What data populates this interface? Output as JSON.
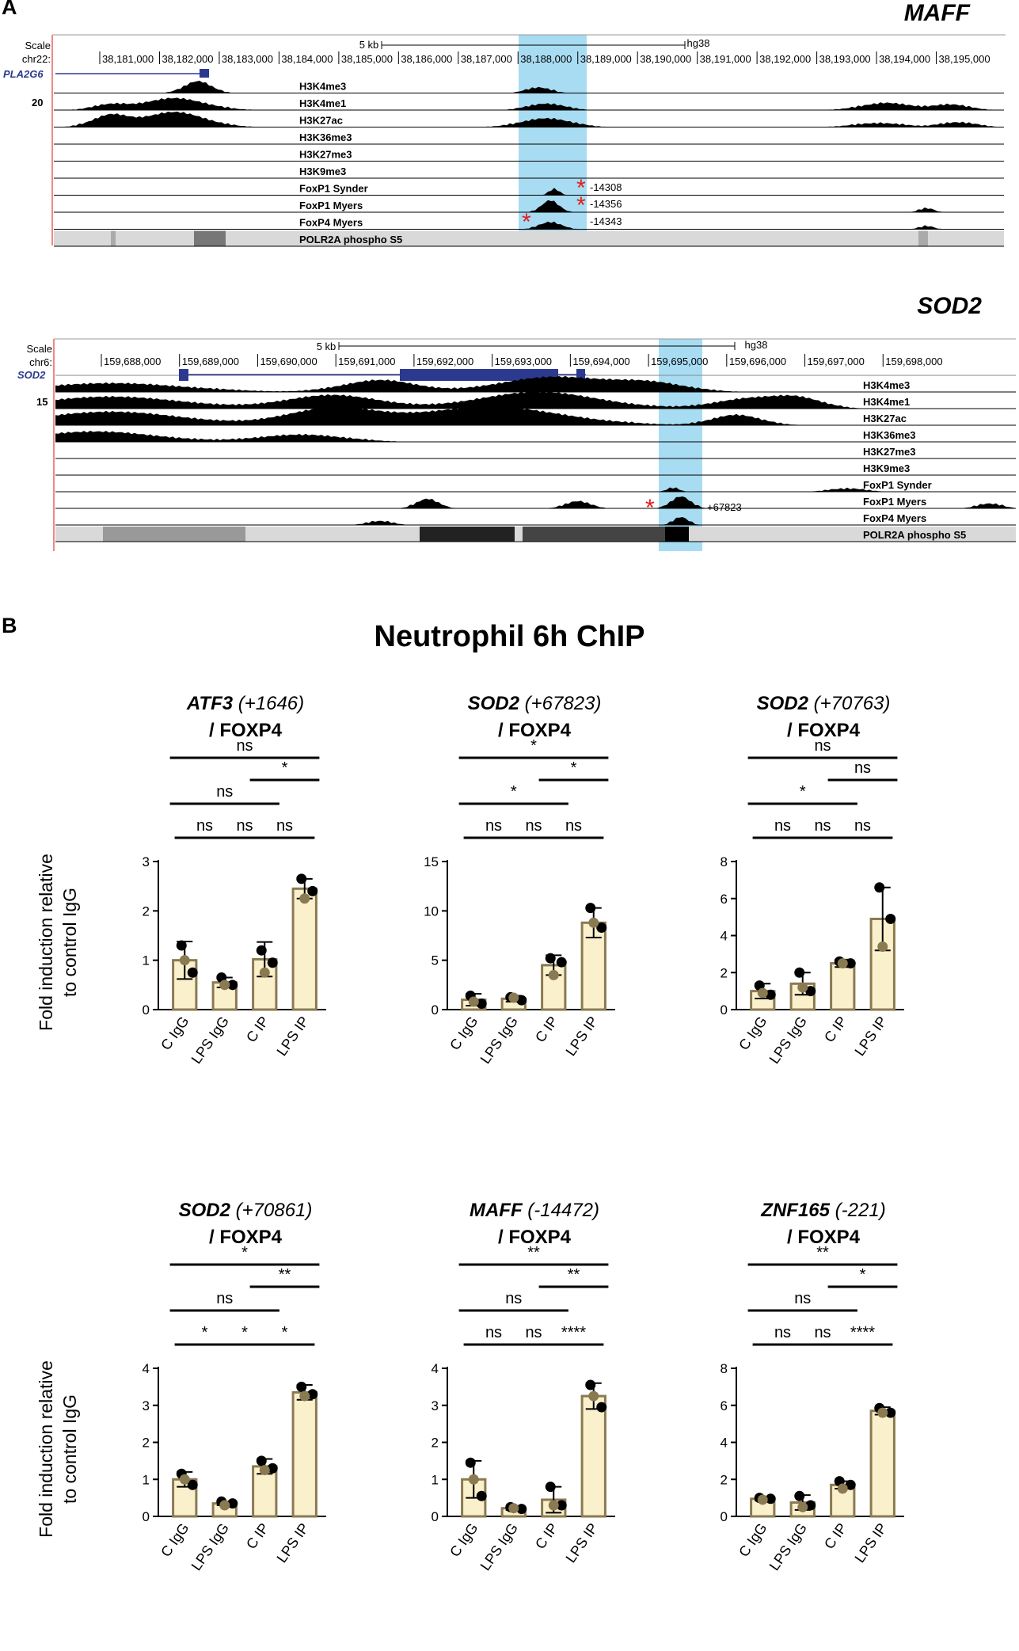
{
  "panel_a": {
    "label": "A",
    "maff": {
      "gene_title": "MAFF",
      "scale_label": "Scale",
      "scale_len": "5 kb",
      "assembly": "hg38",
      "chrom": "chr22:",
      "ticks": [
        "38,181,000",
        "38,182,000",
        "38,183,000",
        "38,184,000",
        "38,185,000",
        "38,186,000",
        "38,187,000",
        "38,188,000",
        "38,189,000",
        "38,190,000",
        "38,191,000",
        "38,192,000",
        "38,193,000",
        "38,194,000",
        "38,195,000"
      ],
      "gene_name": "PLA2G6",
      "ymax": "20",
      "tracks": [
        "H3K4me3",
        "H3K4me1",
        "H3K27ac",
        "H3K36me3",
        "H3K27me3",
        "H3K9me3",
        "FoxP1 Synder",
        "FoxP1 Myers",
        "FoxP4 Myers",
        "POLR2A phospho S5"
      ],
      "peak_labels": [
        "-14308",
        "-14356",
        "-14343"
      ]
    },
    "sod2": {
      "gene_title": "SOD2",
      "scale_label": "Scale",
      "scale_len": "5 kb",
      "assembly": "hg38",
      "chrom": "chr6:",
      "ticks": [
        "159,688,000",
        "159,689,000",
        "159,690,000",
        "159,691,000",
        "159,692,000",
        "159,693,000",
        "159,694,000",
        "159,695,000",
        "159,696,000",
        "159,697,000",
        "159,698,000"
      ],
      "gene_name": "SOD2",
      "ymax": "15",
      "tracks": [
        "H3K4me3",
        "H3K4me1",
        "H3K27ac",
        "H3K36me3",
        "H3K27me3",
        "H3K9me3",
        "FoxP1 Synder",
        "FoxP1 Myers",
        "FoxP4 Myers",
        "POLR2A phospho S5"
      ],
      "peak_labels": [
        "+67823"
      ]
    }
  },
  "panel_b": {
    "label": "B",
    "title": "Neutrophil 6h ChIP",
    "ylabel_line1": "Fold induction relative",
    "ylabel_line2": "to control IgG"
  },
  "colors": {
    "bar_fill": "#fbf0cc",
    "bar_edge": "#8a7a52",
    "highlight": "#a8dcf2",
    "track_label_line": "#c0399d"
  },
  "chart_data": [
    {
      "type": "bar",
      "gene": "ATF3",
      "site": "(+1646)",
      "target": "/ FOXP4",
      "categories": [
        "C IgG",
        "LPS IgG",
        "C IP",
        "LPS IP"
      ],
      "values": [
        1.0,
        0.55,
        1.02,
        2.45
      ],
      "errors": [
        0.38,
        0.1,
        0.35,
        0.2
      ],
      "points": [
        [
          1.3,
          0.75,
          1.0
        ],
        [
          0.65,
          0.5,
          0.5
        ],
        [
          1.2,
          0.95,
          0.75
        ],
        [
          2.65,
          2.4,
          2.25
        ]
      ],
      "ylim": [
        0,
        3
      ],
      "yticks": [
        0,
        1,
        2,
        3
      ],
      "sig": [
        {
          "a": 0,
          "b": 3,
          "label": "ns"
        },
        {
          "a": 2,
          "b": 3,
          "label": "*"
        },
        {
          "a": 0,
          "b": 2,
          "label": "ns"
        },
        {
          "a": 0,
          "b": 1,
          "label": "ns"
        },
        {
          "a": 1,
          "b": 2,
          "label": "ns"
        },
        {
          "a": 2,
          "b": 3,
          "label": "ns"
        }
      ]
    },
    {
      "type": "bar",
      "gene": "SOD2",
      "site": "(+67823)",
      "target": "/ FOXP4",
      "categories": [
        "C IgG",
        "LPS IgG",
        "C IP",
        "LPS IP"
      ],
      "values": [
        1.0,
        1.1,
        4.5,
        8.8
      ],
      "errors": [
        0.6,
        0.3,
        1.0,
        1.5
      ],
      "points": [
        [
          1.4,
          0.6,
          0.8
        ],
        [
          1.25,
          0.95,
          1.2
        ],
        [
          5.2,
          4.8,
          3.5
        ],
        [
          10.3,
          8.3,
          8.8
        ]
      ],
      "ylim": [
        0,
        15
      ],
      "yticks": [
        0,
        5,
        10,
        15
      ],
      "sig": [
        {
          "a": 0,
          "b": 3,
          "label": "*"
        },
        {
          "a": 2,
          "b": 3,
          "label": "*"
        },
        {
          "a": 0,
          "b": 2,
          "label": "*"
        },
        {
          "a": 0,
          "b": 1,
          "label": "ns"
        },
        {
          "a": 1,
          "b": 2,
          "label": "ns"
        },
        {
          "a": 2,
          "b": 3,
          "label": "ns"
        }
      ]
    },
    {
      "type": "bar",
      "gene": "SOD2",
      "site": "(+70763)",
      "target": "/ FOXP4",
      "categories": [
        "C IgG",
        "LPS IgG",
        "C IP",
        "LPS IP"
      ],
      "values": [
        1.0,
        1.4,
        2.5,
        4.9
      ],
      "errors": [
        0.4,
        0.6,
        0.2,
        1.7
      ],
      "points": [
        [
          1.3,
          0.8,
          0.9
        ],
        [
          2.0,
          1.0,
          1.2
        ],
        [
          2.6,
          2.5,
          2.5
        ],
        [
          6.6,
          4.9,
          3.4
        ]
      ],
      "ylim": [
        0,
        8
      ],
      "yticks": [
        0,
        2,
        4,
        6,
        8
      ],
      "sig": [
        {
          "a": 0,
          "b": 3,
          "label": "ns"
        },
        {
          "a": 2,
          "b": 3,
          "label": "ns"
        },
        {
          "a": 0,
          "b": 2,
          "label": "*"
        },
        {
          "a": 0,
          "b": 1,
          "label": "ns"
        },
        {
          "a": 1,
          "b": 2,
          "label": "ns"
        },
        {
          "a": 2,
          "b": 3,
          "label": "ns"
        }
      ]
    },
    {
      "type": "bar",
      "gene": "SOD2",
      "site": "(+70861)",
      "target": "/ FOXP4",
      "categories": [
        "C IgG",
        "LPS IgG",
        "C IP",
        "LPS IP"
      ],
      "values": [
        1.0,
        0.35,
        1.35,
        3.35
      ],
      "errors": [
        0.2,
        0.05,
        0.2,
        0.2
      ],
      "points": [
        [
          1.15,
          0.85,
          1.0
        ],
        [
          0.4,
          0.35,
          0.3
        ],
        [
          1.5,
          1.3,
          1.25
        ],
        [
          3.5,
          3.3,
          3.25
        ]
      ],
      "ylim": [
        0,
        4
      ],
      "yticks": [
        0,
        1,
        2,
        3,
        4
      ],
      "sig": [
        {
          "a": 0,
          "b": 3,
          "label": "*"
        },
        {
          "a": 2,
          "b": 3,
          "label": "**"
        },
        {
          "a": 0,
          "b": 2,
          "label": "ns"
        },
        {
          "a": 0,
          "b": 1,
          "label": "*"
        },
        {
          "a": 1,
          "b": 2,
          "label": "*"
        },
        {
          "a": 2,
          "b": 3,
          "label": "*"
        }
      ]
    },
    {
      "type": "bar",
      "gene": "MAFF",
      "site": "(-14472)",
      "target": "/ FOXP4",
      "categories": [
        "C IgG",
        "LPS IgG",
        "C IP",
        "LPS IP"
      ],
      "values": [
        1.0,
        0.22,
        0.45,
        3.25
      ],
      "errors": [
        0.5,
        0.05,
        0.35,
        0.35
      ],
      "points": [
        [
          1.45,
          0.55,
          1.0
        ],
        [
          0.25,
          0.2,
          0.22
        ],
        [
          0.8,
          0.3,
          0.3
        ],
        [
          3.55,
          2.95,
          3.25
        ]
      ],
      "ylim": [
        0,
        4
      ],
      "yticks": [
        0,
        1,
        2,
        3,
        4
      ],
      "sig": [
        {
          "a": 0,
          "b": 3,
          "label": "**"
        },
        {
          "a": 2,
          "b": 3,
          "label": "**"
        },
        {
          "a": 0,
          "b": 2,
          "label": "ns"
        },
        {
          "a": 0,
          "b": 1,
          "label": "ns"
        },
        {
          "a": 1,
          "b": 2,
          "label": "ns"
        },
        {
          "a": 2,
          "b": 3,
          "label": "****"
        }
      ]
    },
    {
      "type": "bar",
      "gene": "ZNF165",
      "site": "(-221)",
      "target": "/ FOXP4",
      "categories": [
        "C IgG",
        "LPS IgG",
        "C IP",
        "LPS IP"
      ],
      "values": [
        0.95,
        0.75,
        1.7,
        5.7
      ],
      "errors": [
        0.1,
        0.4,
        0.2,
        0.2
      ],
      "points": [
        [
          1.0,
          0.95,
          0.9
        ],
        [
          1.1,
          0.6,
          0.5
        ],
        [
          1.9,
          1.7,
          1.5
        ],
        [
          5.85,
          5.6,
          5.6
        ]
      ],
      "ylim": [
        0,
        8
      ],
      "yticks": [
        0,
        2,
        4,
        6,
        8
      ],
      "sig": [
        {
          "a": 0,
          "b": 3,
          "label": "**"
        },
        {
          "a": 2,
          "b": 3,
          "label": "*"
        },
        {
          "a": 0,
          "b": 2,
          "label": "ns"
        },
        {
          "a": 0,
          "b": 1,
          "label": "ns"
        },
        {
          "a": 1,
          "b": 2,
          "label": "ns"
        },
        {
          "a": 2,
          "b": 3,
          "label": "****"
        }
      ]
    }
  ]
}
